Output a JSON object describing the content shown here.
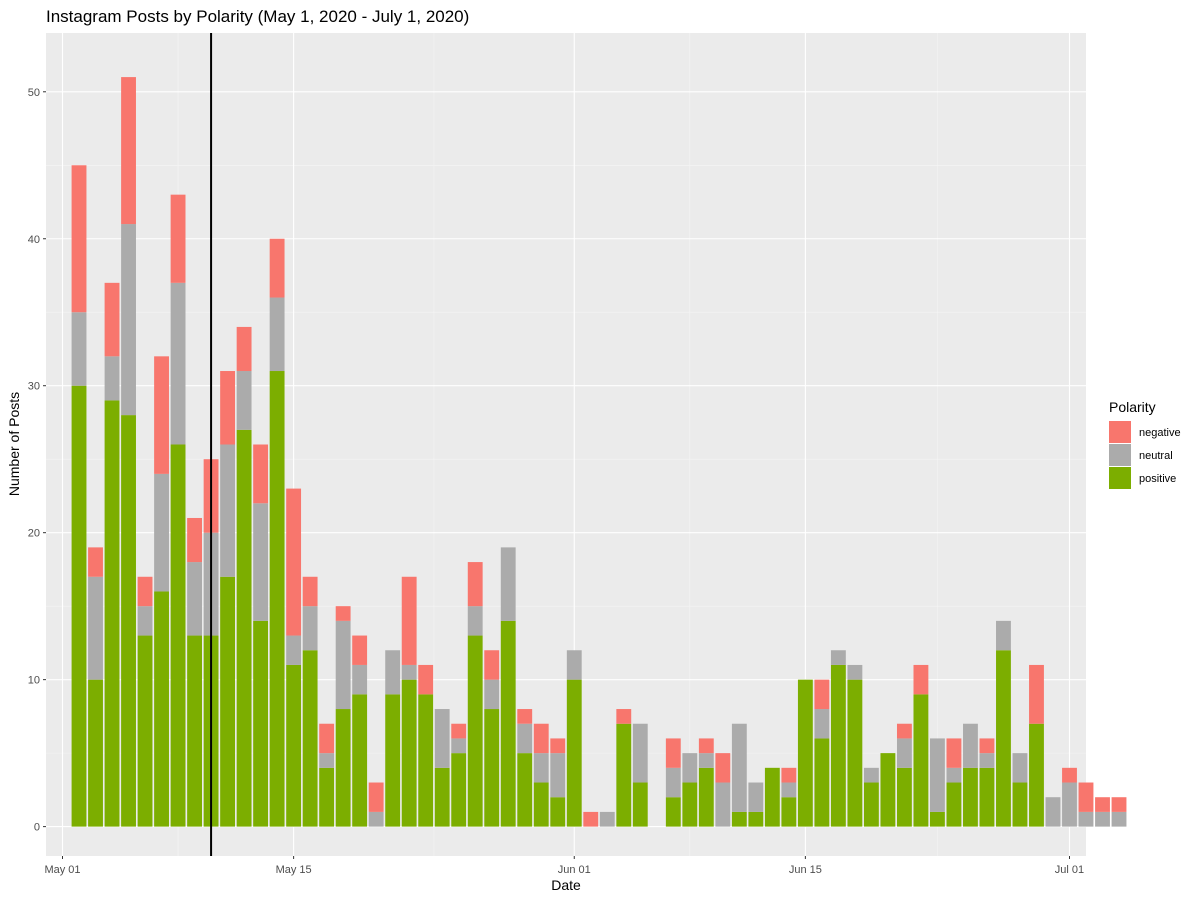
{
  "chart_data": {
    "type": "bar",
    "stacked": true,
    "title": "Instagram Posts by Polarity (May 1, 2020 - July 1, 2020)",
    "xlabel": "Date",
    "ylabel": "Number of Posts",
    "ylim": [
      -2,
      54
    ],
    "yticks": [
      0,
      10,
      20,
      30,
      40,
      50
    ],
    "xlim": [
      "2020-04-30",
      "2020-07-02"
    ],
    "xticks": [
      {
        "date": "2020-05-01",
        "label": "May 01"
      },
      {
        "date": "2020-05-15",
        "label": "May 15"
      },
      {
        "date": "2020-06-01",
        "label": "Jun 01"
      },
      {
        "date": "2020-06-15",
        "label": "Jun 15"
      },
      {
        "date": "2020-07-01",
        "label": "Jul 01"
      }
    ],
    "vline": {
      "date": "2020-05-10",
      "color": "#000000"
    },
    "grid": true,
    "legend": {
      "title": "Polarity",
      "position": "right"
    },
    "series": [
      {
        "name": "negative",
        "color": "#F8766D",
        "values": [
          10,
          2,
          5,
          10,
          2,
          8,
          6,
          3,
          5,
          5,
          3,
          4,
          4,
          10,
          2,
          2,
          1,
          2,
          2,
          0,
          6,
          2,
          0,
          1,
          3,
          2,
          0,
          1,
          2,
          1,
          0,
          1,
          0,
          1,
          0,
          0,
          2,
          0,
          1,
          2,
          0,
          0,
          0,
          1,
          0,
          2,
          0,
          0,
          0,
          0,
          1,
          2,
          0,
          2,
          0,
          1,
          0,
          0,
          4,
          0,
          1,
          2,
          1,
          1
        ]
      },
      {
        "name": "neutral",
        "color": "#ABABAB",
        "values": [
          5,
          7,
          3,
          13,
          2,
          8,
          11,
          5,
          7,
          9,
          4,
          8,
          5,
          2,
          3,
          1,
          6,
          2,
          1,
          3,
          1,
          0,
          4,
          1,
          2,
          2,
          5,
          2,
          2,
          3,
          2,
          0,
          1,
          0,
          4,
          0,
          2,
          2,
          1,
          3,
          6,
          2,
          0,
          1,
          0,
          2,
          1,
          1,
          1,
          0,
          2,
          0,
          5,
          1,
          3,
          1,
          2,
          2,
          0,
          2,
          3,
          1,
          1,
          1
        ]
      },
      {
        "name": "positive",
        "color": "#7CAE00",
        "values": [
          30,
          10,
          29,
          28,
          13,
          16,
          26,
          13,
          13,
          17,
          27,
          14,
          31,
          11,
          12,
          4,
          8,
          9,
          0,
          9,
          10,
          9,
          4,
          5,
          13,
          8,
          14,
          5,
          3,
          2,
          10,
          0,
          0,
          7,
          3,
          0,
          2,
          3,
          4,
          0,
          1,
          1,
          4,
          2,
          10,
          6,
          11,
          10,
          3,
          5,
          4,
          9,
          1,
          3,
          4,
          4,
          12,
          3,
          7,
          0,
          0,
          0,
          0,
          0
        ]
      }
    ]
  }
}
